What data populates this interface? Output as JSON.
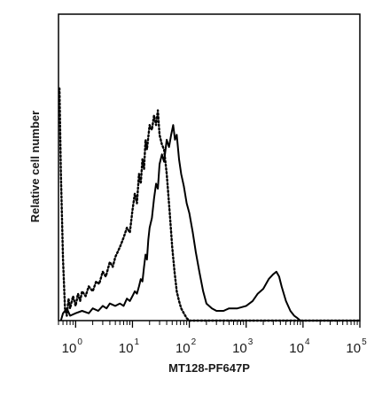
{
  "chart_data": {
    "type": "line",
    "title": "",
    "xlabel": "MT128-PF647P",
    "ylabel": "Relative cell number",
    "x_scale": "log",
    "xlim": [
      0.5,
      100000
    ],
    "ylim": [
      0,
      1
    ],
    "grid": false,
    "legend": "none",
    "x_ticks": [
      {
        "base": "10",
        "exp": "0",
        "value": 1
      },
      {
        "base": "10",
        "exp": "1",
        "value": 10
      },
      {
        "base": "10",
        "exp": "2",
        "value": 100
      },
      {
        "base": "10",
        "exp": "3",
        "value": 1000
      },
      {
        "base": "10",
        "exp": "4",
        "value": 10000
      },
      {
        "base": "10",
        "exp": "5",
        "value": 100000
      }
    ],
    "series": [
      {
        "style": "solid",
        "color": "#000000",
        "x": [
          0.55,
          0.6,
          0.7,
          0.8,
          1,
          1.3,
          1.7,
          2,
          2.5,
          3,
          3.5,
          4,
          5,
          6,
          7,
          8,
          9,
          10,
          11,
          12,
          13,
          14,
          15,
          16,
          17,
          18,
          19,
          20,
          22,
          24,
          26,
          28,
          30,
          33,
          36,
          40,
          44,
          48,
          52,
          56,
          60,
          66,
          72,
          80,
          90,
          100,
          115,
          130,
          150,
          175,
          200,
          250,
          300,
          400,
          500,
          700,
          1000,
          1300,
          1600,
          2000,
          2500,
          3000,
          3400,
          3800,
          4200,
          5000,
          6000,
          7000,
          8000,
          9000,
          10000,
          20000,
          50000,
          100000
        ],
        "y": [
          0,
          0.03,
          0.05,
          0.02,
          0.03,
          0.04,
          0.03,
          0.05,
          0.04,
          0.06,
          0.05,
          0.07,
          0.06,
          0.07,
          0.06,
          0.09,
          0.08,
          0.1,
          0.12,
          0.11,
          0.14,
          0.17,
          0.16,
          0.22,
          0.27,
          0.25,
          0.33,
          0.38,
          0.42,
          0.5,
          0.56,
          0.54,
          0.64,
          0.68,
          0.65,
          0.74,
          0.71,
          0.76,
          0.8,
          0.74,
          0.76,
          0.66,
          0.6,
          0.55,
          0.48,
          0.44,
          0.36,
          0.28,
          0.2,
          0.12,
          0.07,
          0.05,
          0.04,
          0.04,
          0.05,
          0.05,
          0.06,
          0.08,
          0.11,
          0.13,
          0.17,
          0.19,
          0.2,
          0.18,
          0.14,
          0.08,
          0.04,
          0.02,
          0.01,
          0,
          0,
          0,
          0,
          0
        ]
      },
      {
        "style": "dotted",
        "color": "#000000",
        "x": [
          0.52,
          0.55,
          0.6,
          0.65,
          0.7,
          0.75,
          0.8,
          0.9,
          1,
          1.1,
          1.2,
          1.3,
          1.5,
          1.7,
          2,
          2.3,
          2.6,
          3,
          3.4,
          4,
          4.5,
          5,
          6,
          7,
          8,
          9,
          10,
          11,
          12,
          13,
          14,
          15,
          16,
          17,
          18,
          20,
          22,
          24,
          26,
          28,
          30,
          33,
          36,
          40,
          45,
          50,
          55,
          60,
          66,
          72,
          80,
          90,
          100,
          115,
          130,
          150,
          200,
          500,
          1000,
          100000
        ],
        "y": [
          0.95,
          0.6,
          0.25,
          0.05,
          0.02,
          0.09,
          0.05,
          0.1,
          0.06,
          0.11,
          0.08,
          0.12,
          0.1,
          0.14,
          0.12,
          0.16,
          0.15,
          0.2,
          0.18,
          0.24,
          0.22,
          0.26,
          0.3,
          0.34,
          0.38,
          0.36,
          0.45,
          0.52,
          0.48,
          0.6,
          0.56,
          0.66,
          0.62,
          0.74,
          0.7,
          0.8,
          0.78,
          0.84,
          0.8,
          0.86,
          0.76,
          0.72,
          0.7,
          0.6,
          0.45,
          0.3,
          0.2,
          0.12,
          0.08,
          0.05,
          0.03,
          0.01,
          0,
          0,
          0,
          0,
          0,
          0,
          0,
          0
        ]
      }
    ]
  }
}
